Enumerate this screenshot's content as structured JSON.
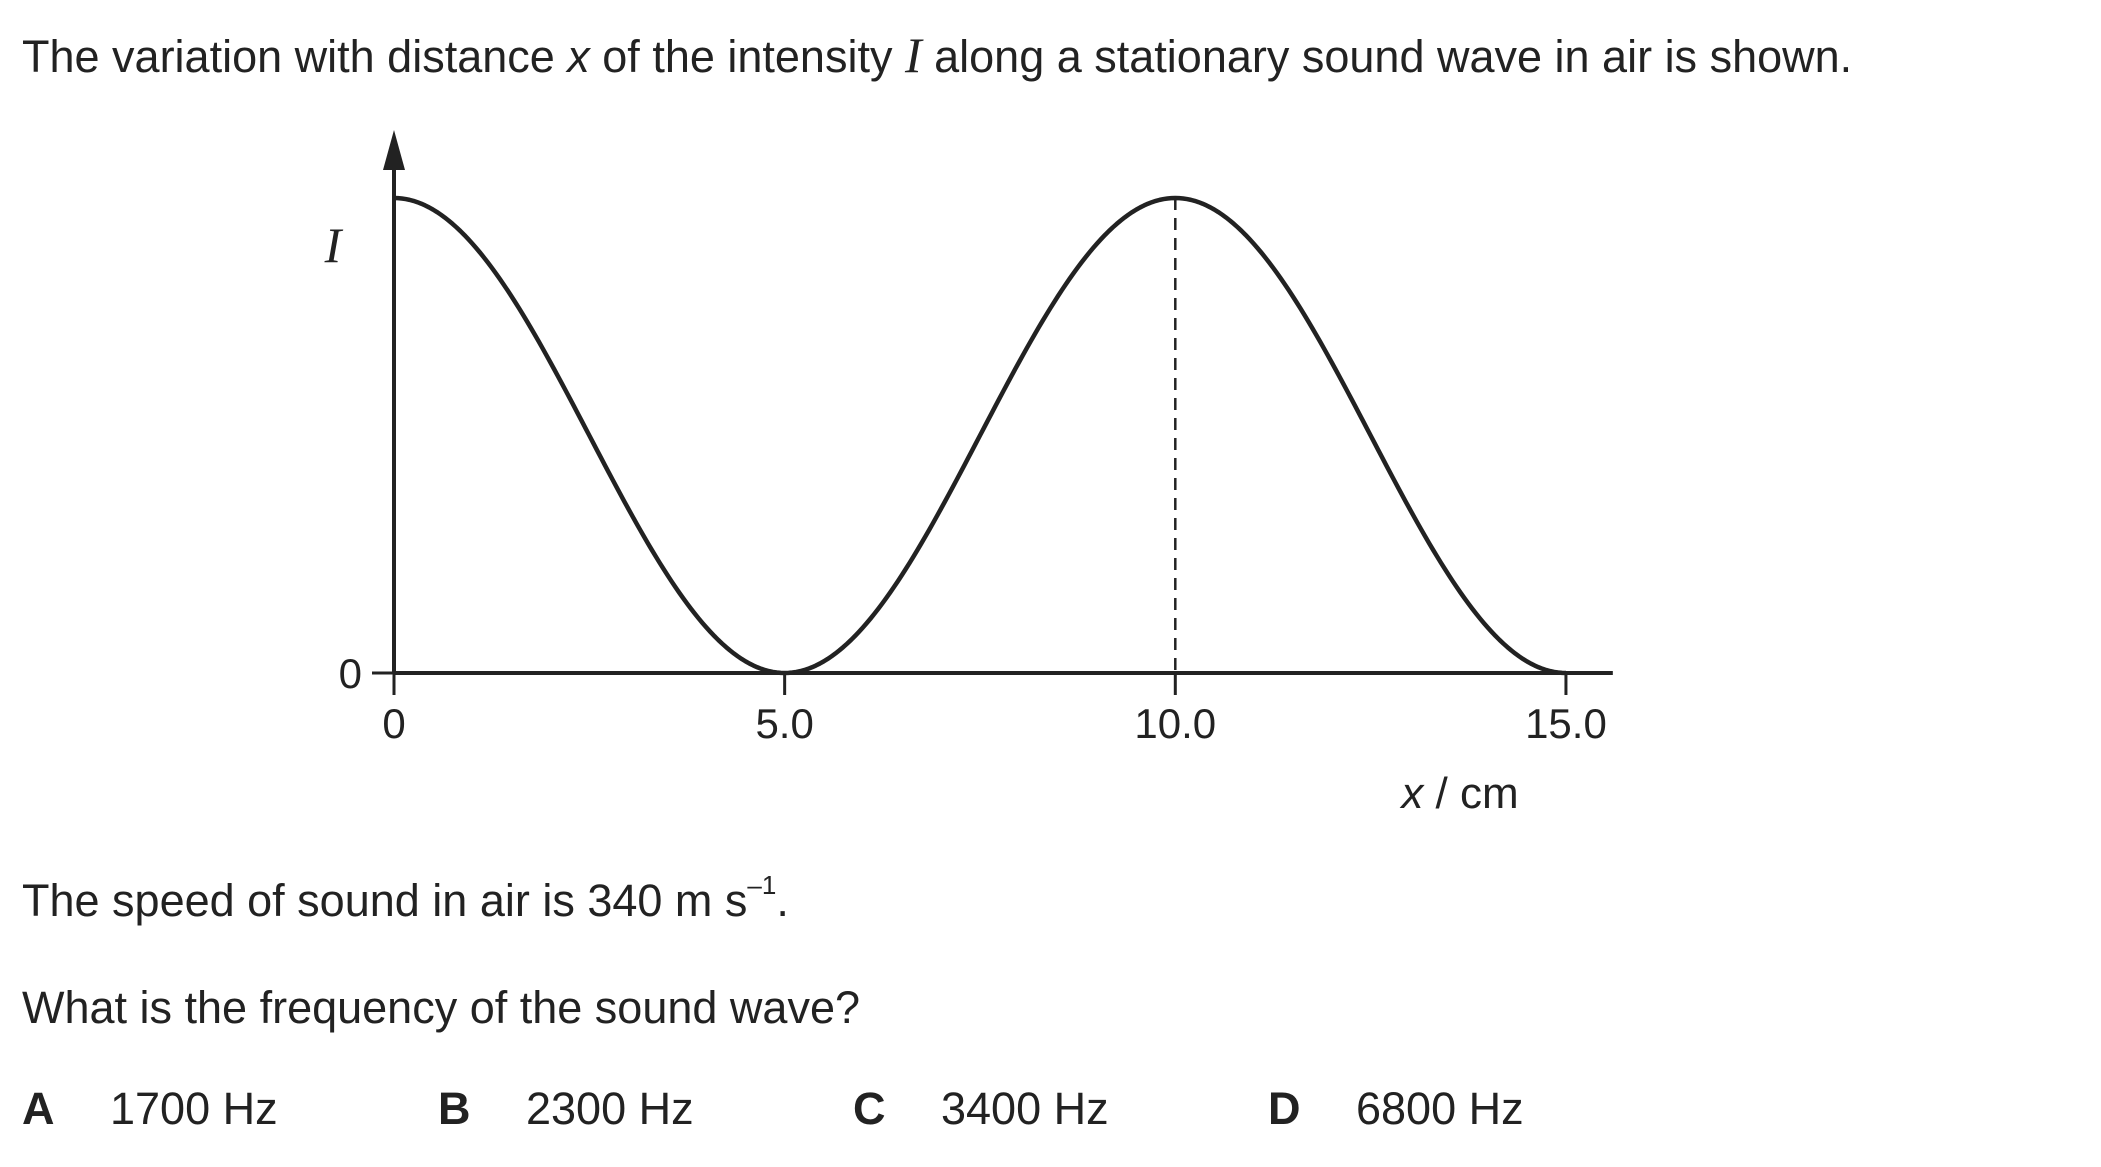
{
  "question": {
    "intro_before_x": "The variation with distance ",
    "x_symbol": "x",
    "intro_middle": " of the intensity ",
    "i_symbol": "I",
    "intro_after": " along a stationary sound wave in air is shown.",
    "speed_before_sup": "The speed of sound in air is 340 m s",
    "speed_sup": "–1",
    "speed_after_sup": ".",
    "prompt": "What is the frequency of the sound wave?"
  },
  "options": [
    {
      "letter": "A",
      "text": "1700 Hz"
    },
    {
      "letter": "B",
      "text": "2300 Hz"
    },
    {
      "letter": "C",
      "text": "3400 Hz"
    },
    {
      "letter": "D",
      "text": "6800 Hz"
    }
  ],
  "chart_data": {
    "type": "line",
    "title": "",
    "ylabel": "I",
    "xlabel_symbol": "x",
    "xlabel_unit": " / cm",
    "xlim": [
      0,
      15.6
    ],
    "ylim": [
      0,
      1
    ],
    "x_ticks": [
      {
        "value": 0,
        "label": "0"
      },
      {
        "value": 5.0,
        "label": "5.0"
      },
      {
        "value": 10.0,
        "label": "10.0"
      },
      {
        "value": 15.0,
        "label": "15.0"
      }
    ],
    "y_ticks": [
      {
        "value": 0,
        "label": "0"
      }
    ],
    "series": [
      {
        "curve": "I = Imax·cos²(πx/10)",
        "x": [
          0,
          2.5,
          5.0,
          7.5,
          10.0,
          12.5,
          15.0
        ],
        "values": [
          1,
          0.5,
          0,
          0.5,
          1,
          0.5,
          0
        ]
      }
    ],
    "annotations": [
      {
        "type": "vertical-dashed-line",
        "x": 10.0,
        "from_y": 0,
        "to_y": 1
      }
    ],
    "grid": false,
    "legend": "none"
  }
}
